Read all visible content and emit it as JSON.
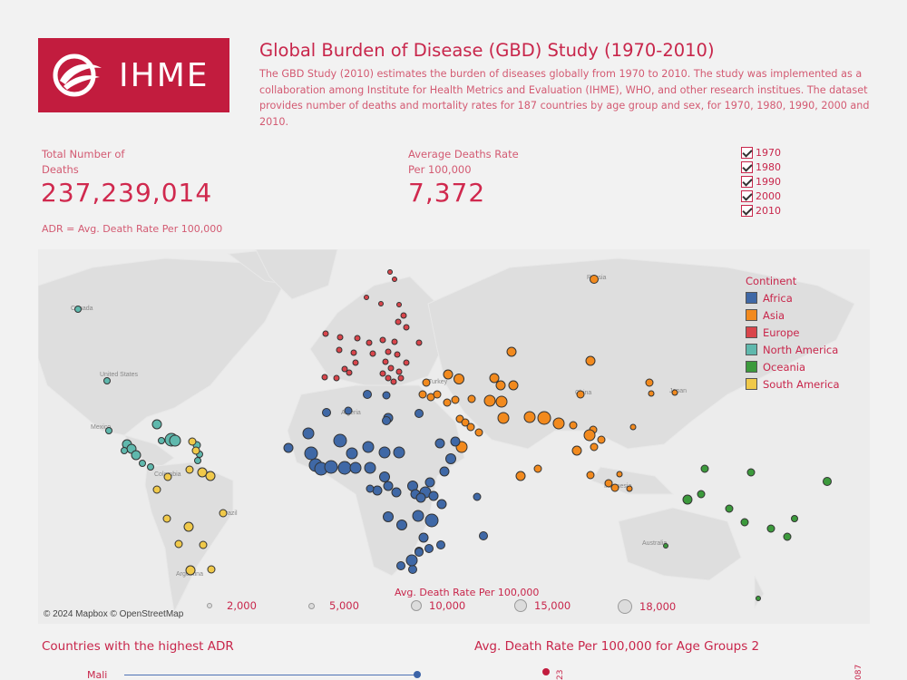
{
  "logo": {
    "text": "IHME"
  },
  "header": {
    "title": "Global Burden of Disease (GBD) Study (1970-2010)",
    "description": "The GBD Study (2010) estimates the burden of diseases globally from 1970 to 2010. The study was implemented as a collaboration among Institute for Health Metrics and Evaluation (IHME), WHO, and other research institues. The dataset provides number of deaths and mortality rates for 187 countries by age group and sex, for 1970, 1980, 1990, 2000 and 2010."
  },
  "kpis": {
    "total_label_1": "Total Number of",
    "total_label_2": "Deaths",
    "total_value": "237,239,014",
    "avg_label_1": "Average Deaths Rate",
    "avg_label_2": "Per 100,000",
    "avg_value": "7,372",
    "note": "ADR = Avg. Death Rate Per 100,000"
  },
  "year_filter": [
    "1970",
    "1980",
    "1990",
    "2000",
    "2010"
  ],
  "map": {
    "place_labels": {
      "canada": "Canada",
      "us": "United States",
      "mexico": "Mexico",
      "colombia": "Colombia",
      "brazil": "Brazil",
      "argentina": "Argentina",
      "algeria": "Algeria",
      "russia": "Russia",
      "china": "China",
      "japan": "Japan",
      "indonesia": "Indonesia",
      "australia": "Australia",
      "turkey": "Turkey"
    },
    "copyright": "© 2024 Mapbox © OpenStreetMap"
  },
  "legend": {
    "title": "Continent",
    "items": [
      {
        "label": "Africa",
        "color": "#3f68a6"
      },
      {
        "label": "Asia",
        "color": "#f28a1e"
      },
      {
        "label": "Europe",
        "color": "#d9454b"
      },
      {
        "label": "North America",
        "color": "#5fb8ad"
      },
      {
        "label": "Oceania",
        "color": "#3c9a3c"
      },
      {
        "label": "South America",
        "color": "#f0c94a"
      }
    ]
  },
  "size_legend": {
    "title": "Avg. Death Rate Per 100,000",
    "items": [
      "2,000",
      "5,000",
      "10,000",
      "15,000",
      "18,000"
    ]
  },
  "bottom": {
    "left_title": "Countries with the highest ADR",
    "right_title": "Avg. Death Rate Per 100,000  for Age Groups 2",
    "top_country": "Mali",
    "value_a": "23",
    "value_b": "087"
  }
}
